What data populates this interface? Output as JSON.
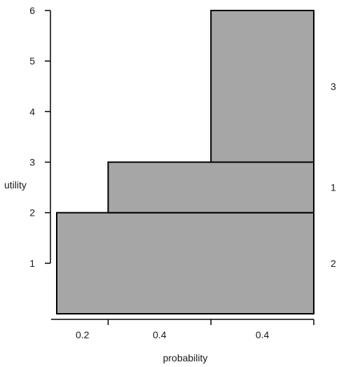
{
  "chart_data": {
    "type": "area",
    "title": "",
    "xlabel": "probability",
    "ylabel": "utility",
    "ylim": [
      0,
      6
    ],
    "xlim": [
      0,
      1
    ],
    "y_ticks": [
      1,
      2,
      3,
      4,
      5,
      6
    ],
    "x_segments": [
      {
        "label": "0.2",
        "start": 0.0,
        "end": 0.2
      },
      {
        "label": "0.4",
        "start": 0.2,
        "end": 0.6
      },
      {
        "label": "0.4",
        "start": 0.6,
        "end": 1.0
      }
    ],
    "blocks": [
      {
        "x0": 0.0,
        "x1": 1.0,
        "y0": 0,
        "y1": 2,
        "right_label": "2"
      },
      {
        "x0": 0.2,
        "x1": 1.0,
        "y0": 2,
        "y1": 3,
        "right_label": "1"
      },
      {
        "x0": 0.6,
        "x1": 1.0,
        "y0": 3,
        "y1": 6,
        "right_label": "3"
      }
    ],
    "fill_color": "#a6a6a6",
    "edge_color": "#000000",
    "grid": false,
    "legend": "none"
  }
}
